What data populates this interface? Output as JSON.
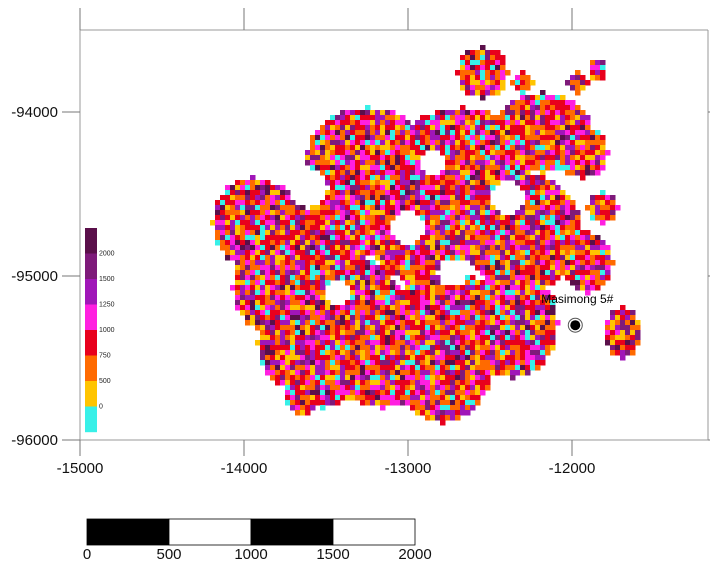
{
  "chart_data": {
    "type": "heatmap",
    "x_ticks": [
      "-15000",
      "-14000",
      "-13000",
      "-12000"
    ],
    "x_tick_values": [
      -15000,
      -14000,
      -13000,
      -12000
    ],
    "y_ticks": [
      "-94000",
      "-95000",
      "-96000"
    ],
    "y_tick_values": [
      -94000,
      -95000,
      -96000
    ],
    "xlim": [
      -15000,
      -11200
    ],
    "ylim": [
      -96000,
      -93450
    ],
    "grid": false,
    "legend_placement": "left",
    "color_scale": {
      "labels": [
        "2000",
        "1500",
        "1250",
        "1000",
        "750",
        "500",
        "0"
      ],
      "bins": [
        {
          "color": "#5a0f4a"
        },
        {
          "color": "#7e1a7a"
        },
        {
          "color": "#a016b8"
        },
        {
          "color": "#ff1fe0"
        },
        {
          "color": "#e8001c"
        },
        {
          "color": "#ff6a00"
        },
        {
          "color": "#ffc400"
        },
        {
          "color": "#38f0e8"
        }
      ]
    },
    "wells": [
      {
        "name": "Masimong 5#",
        "x": -11980,
        "y": -95300
      }
    ],
    "scale_bar": {
      "labels": [
        "0",
        "500",
        "1000",
        "1500",
        "2000"
      ],
      "segment_colors": [
        "#000000",
        "#ffffff",
        "#000000",
        "#ffffff"
      ]
    }
  }
}
